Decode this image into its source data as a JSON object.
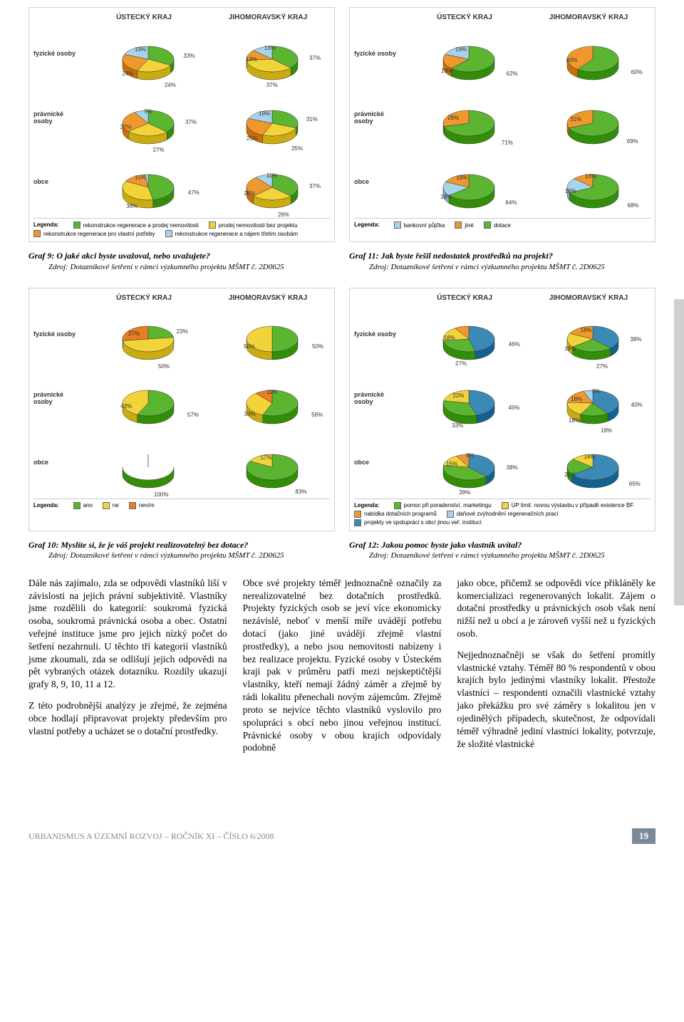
{
  "colors": {
    "green": "#5bb531",
    "yellow": "#f2d43a",
    "orange": "#f0982d",
    "lightblue": "#a7d4e8",
    "blue": "#3b8ab5",
    "darkorange": "#e67e22",
    "white": "#ffffff"
  },
  "panels": [
    {
      "id": "g9",
      "col_headers": [
        "ÚSTECKÝ KRAJ",
        "JIHOMORAVSKÝ KRAJ"
      ],
      "row_labels": [
        "fyzické osoby",
        "právnické osoby",
        "obce"
      ],
      "rows": [
        {
          "left": {
            "slices": [
              {
                "c": "green",
                "v": 33
              },
              {
                "c": "yellow",
                "v": 24
              },
              {
                "c": "orange",
                "v": 24
              },
              {
                "c": "lightblue",
                "v": 19
              }
            ],
            "labels": [
              "33%",
              "24%",
              "24%",
              "19%"
            ]
          },
          "right": {
            "slices": [
              {
                "c": "green",
                "v": 37
              },
              {
                "c": "yellow",
                "v": 37
              },
              {
                "c": "orange",
                "v": 13
              },
              {
                "c": "lightblue",
                "v": 13
              }
            ],
            "labels": [
              "37%",
              "37%",
              "13%",
              "13%"
            ]
          }
        },
        {
          "left": {
            "slices": [
              {
                "c": "green",
                "v": 37
              },
              {
                "c": "yellow",
                "v": 27
              },
              {
                "c": "orange",
                "v": 27
              },
              {
                "c": "lightblue",
                "v": 9
              }
            ],
            "labels": [
              "37%",
              "27%",
              "27%",
              "9%"
            ]
          },
          "right": {
            "slices": [
              {
                "c": "green",
                "v": 31
              },
              {
                "c": "yellow",
                "v": 25
              },
              {
                "c": "orange",
                "v": 25
              },
              {
                "c": "lightblue",
                "v": 19
              }
            ],
            "labels": [
              "31%",
              "25%",
              "25%",
              "19%"
            ]
          }
        },
        {
          "left": {
            "slices": [
              {
                "c": "green",
                "v": 47
              },
              {
                "c": "yellow",
                "v": 36
              },
              {
                "c": "orange",
                "v": 15
              },
              {
                "c": "lightblue",
                "v": 2
              }
            ],
            "labels": [
              "47%",
              "36%",
              "15%",
              ""
            ]
          },
          "right": {
            "slices": [
              {
                "c": "green",
                "v": 37
              },
              {
                "c": "yellow",
                "v": 26
              },
              {
                "c": "orange",
                "v": 26
              },
              {
                "c": "lightblue",
                "v": 11
              }
            ],
            "labels": [
              "37%",
              "26%",
              "26%",
              "11%"
            ]
          }
        }
      ],
      "legend_title": "Legenda:",
      "legend": [
        {
          "c": "green",
          "t": "rekonstrukce regenerace a prodej nemovitosti"
        },
        {
          "c": "yellow",
          "t": "prodej nemovitosti bez projektu"
        },
        {
          "c": "orange",
          "t": "rekonstrukce regenerace pro vlastní potřeby"
        },
        {
          "c": "lightblue",
          "t": "rekonstrukce regenerace a nájem třetím osobám"
        }
      ]
    },
    {
      "id": "g11",
      "col_headers": [
        "ÚSTECKÝ KRAJ",
        "JIHOMORAVSKÝ KRAJ"
      ],
      "row_labels": [
        "fyzické osoby",
        "právnické osoby",
        "obce"
      ],
      "rows": [
        {
          "left": {
            "slices": [
              {
                "c": "green",
                "v": 62
              },
              {
                "c": "orange",
                "v": 19
              },
              {
                "c": "lightblue",
                "v": 19
              }
            ],
            "labels": [
              "62%",
              "19%",
              "19%"
            ]
          },
          "right": {
            "slices": [
              {
                "c": "green",
                "v": 60
              },
              {
                "c": "orange",
                "v": 40
              }
            ],
            "labels": [
              "60%",
              "40%"
            ]
          }
        },
        {
          "left": {
            "slices": [
              {
                "c": "green",
                "v": 71
              },
              {
                "c": "orange",
                "v": 29
              }
            ],
            "labels": [
              "71%",
              "29%"
            ]
          },
          "right": {
            "slices": [
              {
                "c": "green",
                "v": 69
              },
              {
                "c": "orange",
                "v": 31
              }
            ],
            "labels": [
              "69%",
              "31%"
            ]
          }
        },
        {
          "left": {
            "slices": [
              {
                "c": "green",
                "v": 64
              },
              {
                "c": "lightblue",
                "v": 18
              },
              {
                "c": "orange",
                "v": 18
              }
            ],
            "labels": [
              "64%",
              "18%",
              "18%"
            ]
          },
          "right": {
            "slices": [
              {
                "c": "green",
                "v": 68
              },
              {
                "c": "lightblue",
                "v": 19
              },
              {
                "c": "orange",
                "v": 13
              }
            ],
            "labels": [
              "68%",
              "19%",
              "13%"
            ]
          }
        }
      ],
      "legend_title": "Legenda:",
      "legend": [
        {
          "c": "lightblue",
          "t": "bankovní půjčka"
        },
        {
          "c": "orange",
          "t": "jiné"
        },
        {
          "c": "green",
          "t": "dotace"
        }
      ]
    },
    {
      "id": "g10",
      "col_headers": [
        "ÚSTECKÝ KRAJ",
        "JIHOMORAVSKÝ KRAJ"
      ],
      "row_labels": [
        "fyzické osoby",
        "právnické osoby",
        "obce"
      ],
      "rows": [
        {
          "left": {
            "slices": [
              {
                "c": "green",
                "v": 23
              },
              {
                "c": "yellow",
                "v": 50
              },
              {
                "c": "darkorange",
                "v": 27
              }
            ],
            "labels": [
              "23%",
              "50%",
              "27%"
            ]
          },
          "right": {
            "slices": [
              {
                "c": "green",
                "v": 50
              },
              {
                "c": "yellow",
                "v": 50
              }
            ],
            "labels": [
              "50%",
              "50%"
            ]
          }
        },
        {
          "left": {
            "slices": [
              {
                "c": "green",
                "v": 57
              },
              {
                "c": "yellow",
                "v": 43
              }
            ],
            "labels": [
              "57%",
              "43%"
            ]
          },
          "right": {
            "slices": [
              {
                "c": "green",
                "v": 56
              },
              {
                "c": "yellow",
                "v": 33
              },
              {
                "c": "darkorange",
                "v": 11
              }
            ],
            "labels": [
              "56%",
              "33%",
              "11%"
            ]
          }
        },
        {
          "left": {
            "slices": [
              {
                "c": "green",
                "v": 100
              }
            ],
            "labels": [
              "100%"
            ]
          },
          "right": {
            "slices": [
              {
                "c": "green",
                "v": 83
              },
              {
                "c": "yellow",
                "v": 17
              }
            ],
            "labels": [
              "83%",
              "17%"
            ]
          }
        }
      ],
      "legend_title": "Legenda:",
      "legend": [
        {
          "c": "green",
          "t": "ano"
        },
        {
          "c": "yellow",
          "t": "ne"
        },
        {
          "c": "darkorange",
          "t": "nevím"
        }
      ]
    },
    {
      "id": "g12",
      "col_headers": [
        "ÚSTECKÝ KRAJ",
        "JIHOMORAVSKÝ KRAJ"
      ],
      "row_labels": [
        "fyzické osoby",
        "právnické osoby",
        "obce"
      ],
      "rows": [
        {
          "left": {
            "slices": [
              {
                "c": "blue",
                "v": 46
              },
              {
                "c": "green",
                "v": 27
              },
              {
                "c": "yellow",
                "v": 18
              },
              {
                "c": "orange",
                "v": 9
              }
            ],
            "labels": [
              "46%",
              "27%",
              "18%",
              ""
            ]
          },
          "right": {
            "slices": [
              {
                "c": "blue",
                "v": 38
              },
              {
                "c": "green",
                "v": 27
              },
              {
                "c": "yellow",
                "v": 18
              },
              {
                "c": "orange",
                "v": 18
              }
            ],
            "labels": [
              "38%",
              "27%",
              "18%",
              "18%"
            ]
          }
        },
        {
          "left": {
            "slices": [
              {
                "c": "blue",
                "v": 45
              },
              {
                "c": "green",
                "v": 33
              },
              {
                "c": "yellow",
                "v": 22
              }
            ],
            "labels": [
              "45%",
              "33%",
              "22%"
            ]
          },
          "right": {
            "slices": [
              {
                "c": "blue",
                "v": 40
              },
              {
                "c": "green",
                "v": 18
              },
              {
                "c": "yellow",
                "v": 18
              },
              {
                "c": "orange",
                "v": 18
              },
              {
                "c": "lightblue",
                "v": 6
              }
            ],
            "labels": [
              "40%",
              "18%",
              "18%",
              "18%",
              "6%"
            ]
          }
        },
        {
          "left": {
            "slices": [
              {
                "c": "blue",
                "v": 38
              },
              {
                "c": "green",
                "v": 39
              },
              {
                "c": "yellow",
                "v": 15
              },
              {
                "c": "orange",
                "v": 8
              }
            ],
            "labels": [
              "38%",
              "39%",
              "15%",
              "8%"
            ]
          },
          "right": {
            "slices": [
              {
                "c": "blue",
                "v": 65
              },
              {
                "c": "green",
                "v": 21
              },
              {
                "c": "yellow",
                "v": 14
              }
            ],
            "labels": [
              "65%",
              "21%",
              "14%"
            ]
          }
        }
      ],
      "legend_title": "Legenda:",
      "legend": [
        {
          "c": "green",
          "t": "pomoc při poradenství, marketingu"
        },
        {
          "c": "yellow",
          "t": "ÚP limit. novou výstavbu v případě existence BF"
        },
        {
          "c": "orange",
          "t": "nabídka dotačních programů"
        },
        {
          "c": "lightblue",
          "t": "daňové zvýhodnění regeneračních prací"
        },
        {
          "c": "blue",
          "t": "projekty ve spolupráci s obcí jinou veř. institucí"
        }
      ]
    }
  ],
  "captions": {
    "g9": {
      "title": "Graf 9: O jaké akci byste uvažoval, nebo uvažujete?",
      "source": "Zdroj: Dotazníkové šetření v rámci výzkumného projektu MŠMT č. 2D0625"
    },
    "g11": {
      "title": "Graf 11: Jak byste řešil nedostatek prostředků na projekt?",
      "source": "Zdroj: Dotazníkové šetření v rámci výzkumného projektu MŠMT č. 2D0625"
    },
    "g10": {
      "title": "Graf 10: Myslíte si, že je váš projekt realizovatelný bez dotace?",
      "source": "Zdroj: Dotazníkové šetření v rámci výzkumného projektu MŠMT č. 2D0625"
    },
    "g12": {
      "title": "Graf 12: Jakou pomoc byste jako vlastník uvítal?",
      "source": "Zdroj: Dotazníkové šetření v rámci výzkumného projektu MŠMT č. 2D0625"
    }
  },
  "body": {
    "col1": [
      "Dále nás zajímalo, zda se odpovědi vlastníků liší v závislosti na jejich právní subjektivitě. Vlastníky jsme rozdělili do kategorií: soukromá fyzická osoba, soukromá právnická osoba a obec. Ostatní veřejné instituce jsme pro jejich nízký počet do šetření nezahrnuli. U těchto tří kategorií vlastníků jsme zkoumali, zda se odlišují jejich odpovědi na pět vybraných otázek dotazníku. Rozdíly ukazují grafy 8, 9, 10, 11 a 12.",
      "Z této podrobnější analýzy je zřejmé, že zejména obce hodlají připravovat projekty především pro vlastní potřeby a ucházet se o dotační prostředky."
    ],
    "col2": [
      "Obce své projekty téměř jednoznačně označily za nerealizovatelné bez dotačních prostředků. Projekty fyzických osob se jeví více ekonomicky nezávislé, neboť v menší míře uvádějí potřebu dotací (jako jiné uvádějí zřejmě vlastní prostředky), a nebo jsou nemovitosti nabízeny i bez realizace projektu. Fyzické osoby v Ústeckém kraji pak v průměru patří mezi nejskeptičtější vlastníky, kteří nemají žádný záměr a zřejmě by rádi lokalitu přenechali novým zájemcům. Zřejmě proto se nejvíce těchto vlastníků vyslovilo pro spolupráci s obcí nebo jinou veřejnou institucí. Právnické osoby v obou krajích odpovídaly podobně"
    ],
    "col3": [
      "jako obce, přičemž se odpovědi více přikláněly ke komercializaci regenerovaných lokalit. Zájem o dotační prostředky u právnických osob však není nižší než u obcí a je zároveň vyšší než u fyzických osob.",
      "Nejjednoznačněji se však do šetření promítly vlastnické vztahy. Téměř 80 % respondentů v obou krajích bylo jedinými vlastníky lokalit. Přestože vlastníci – respondenti označili vlastnické vztahy jako překážku pro své záměry s lokalitou jen v ojedinělých případech, skutečnost, že odpovídali téměř výhradně jediní vlastníci lokality, potvrzuje, že složité vlastnické"
    ]
  },
  "footer": {
    "left": "URBANISMUS A ÚZEMNÍ ROZVOJ – ROČNÍK XI – ČÍSLO 6/2008",
    "page": "19"
  }
}
